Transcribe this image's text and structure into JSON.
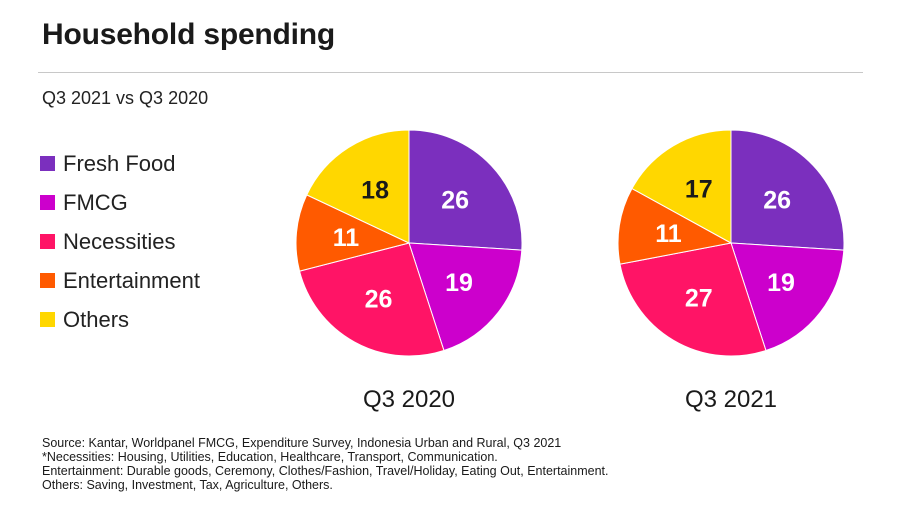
{
  "header": {
    "title": "Household spending",
    "subtitle": "Q3 2021 vs Q3 2020"
  },
  "colors": {
    "fresh_food": "#7b2fbe",
    "fmcg": "#cc00cc",
    "necessities": "#ff1466",
    "entertainment": "#ff5a00",
    "others": "#ffd700"
  },
  "chart_data": {
    "type": "pie",
    "categories": [
      "Fresh Food",
      "FMCG",
      "Necessities",
      "Entertainment",
      "Others"
    ],
    "series": [
      {
        "name": "Q3 2020",
        "values": [
          26,
          19,
          26,
          11,
          18
        ]
      },
      {
        "name": "Q3 2021",
        "values": [
          26,
          19,
          27,
          11,
          17
        ]
      }
    ],
    "legend_position": "left"
  },
  "footnotes": [
    "Source: Kantar, Worldpanel FMCG, Expenditure Survey, Indonesia Urban and Rural, Q3 2021",
    "*Necessities: Housing, Utilities, Education, Healthcare, Transport, Communication.",
    "Entertainment: Durable goods, Ceremony, Clothes/Fashion, Travel/Holiday, Eating Out, Entertainment.",
    "Others: Saving, Investment, Tax, Agriculture, Others."
  ]
}
